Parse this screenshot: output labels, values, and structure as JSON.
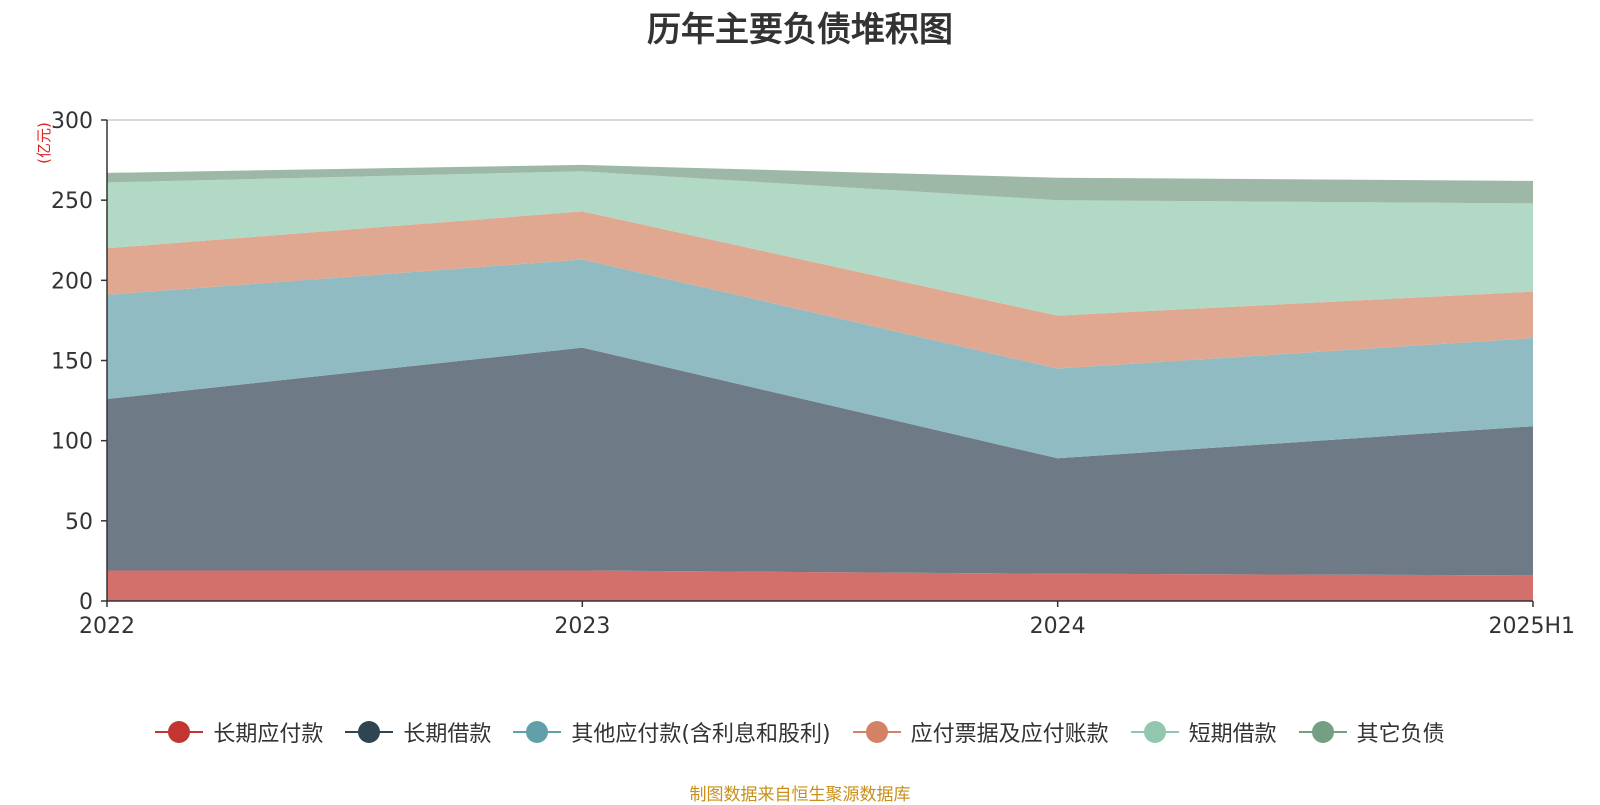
{
  "chart_data": {
    "type": "area",
    "stacked": true,
    "title": "历年主要负债堆积图",
    "unit": "(亿元)",
    "categories": [
      "2022",
      "2023",
      "2024",
      "2025H1"
    ],
    "yticks": [
      0,
      50,
      100,
      150,
      200,
      250,
      300
    ],
    "ylim": [
      0,
      300
    ],
    "grid": true,
    "legend_position": "bottom",
    "series": [
      {
        "name": "长期应付款",
        "values": [
          19,
          19,
          17,
          16
        ],
        "color": "#c23531",
        "fill": "#d4706c"
      },
      {
        "name": "长期借款",
        "values": [
          107,
          139,
          72,
          93
        ],
        "color": "#2f4554",
        "fill": "#6e7b86"
      },
      {
        "name": "其他应付款(含利息和股利)",
        "values": [
          65,
          55,
          56,
          55
        ],
        "color": "#61a0a8",
        "fill": "#91bbc2"
      },
      {
        "name": "应付票据及应付账款",
        "values": [
          29,
          30,
          33,
          29
        ],
        "color": "#d48265",
        "fill": "#e0a791"
      },
      {
        "name": "短期借款",
        "values": [
          41,
          25,
          72,
          55
        ],
        "color": "#91c7ae",
        "fill": "#b2d8c6"
      },
      {
        "name": "其它负债",
        "values": [
          6,
          4,
          14,
          14
        ],
        "color": "#749f83",
        "fill": "#9db8a6"
      }
    ],
    "source": "制图数据来自恒生聚源数据库"
  }
}
